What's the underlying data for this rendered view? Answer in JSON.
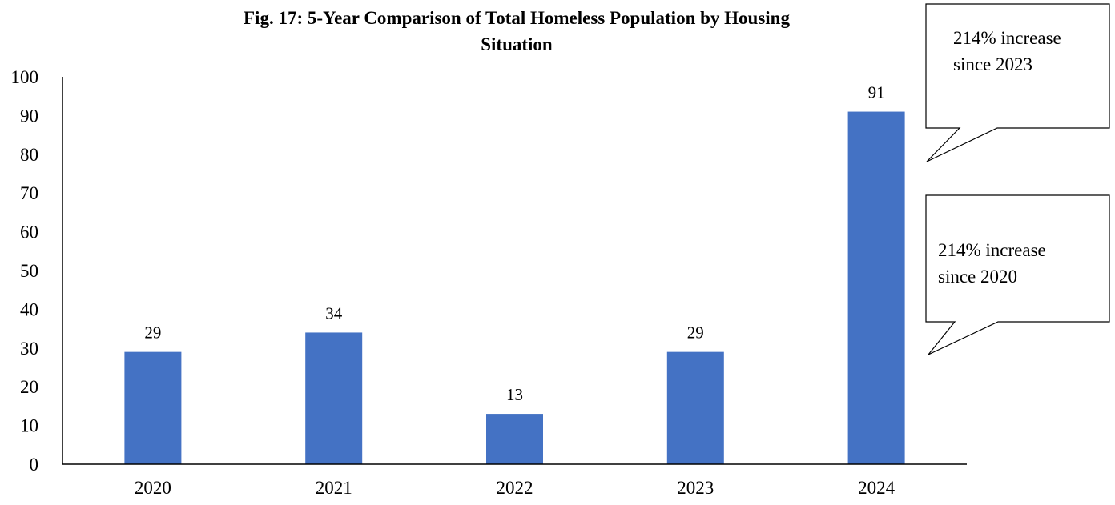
{
  "chart_data": {
    "type": "bar",
    "title": "Fig. 17: 5-Year Comparison of Total Homeless Population by Housing Situation",
    "title_lines": [
      "Fig. 17: 5-Year Comparison of Total Homeless Population by Housing",
      "Situation"
    ],
    "categories": [
      "2020",
      "2021",
      "2022",
      "2023",
      "2024"
    ],
    "values": [
      29,
      34,
      13,
      29,
      91
    ],
    "data_labels": [
      "29",
      "34",
      "13",
      "29",
      "91"
    ],
    "ylim": [
      0,
      100
    ],
    "yticks": [
      0,
      10,
      20,
      30,
      40,
      50,
      60,
      70,
      80,
      90,
      100
    ],
    "grid": false,
    "bar_color": "#4472C4",
    "annotations": [
      {
        "text": "214% increase\nsince 2023"
      },
      {
        "text": "214% increase\nsince 2020"
      }
    ]
  }
}
